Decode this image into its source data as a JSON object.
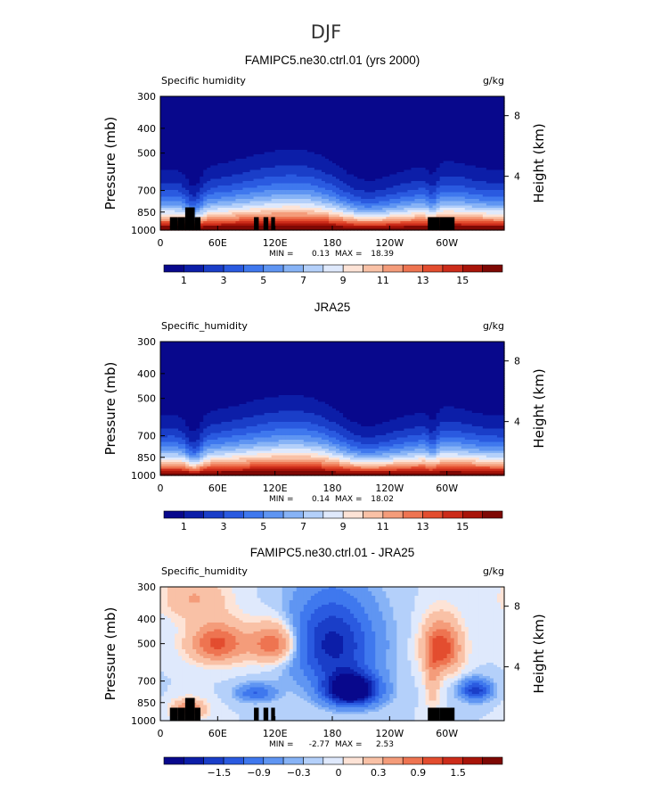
{
  "suptitle": "DJF",
  "colors": [
    "#08088c",
    "#0c1ea8",
    "#1a3ec8",
    "#2a5ae0",
    "#3f78ee",
    "#5f95f2",
    "#87b3f6",
    "#b4d0fa",
    "#dfe9fc",
    "#fde3d6",
    "#f9c1a6",
    "#f49c7a",
    "#ee7451",
    "#e34d2f",
    "#cc2c1a",
    "#a81409",
    "#7e0804"
  ],
  "chart_data": [
    {
      "type": "heatmap",
      "title": "FAMIPC5.ne30.ctrl.01 (yrs 2000)",
      "left_label": "Specific humidity",
      "units": "g/kg",
      "ylabel": "Pressure (mb)",
      "ylabel_right": "Height (km)",
      "yticks": [
        "300",
        "400",
        "500",
        "700",
        "850",
        "1000"
      ],
      "yticks_right": [
        "8",
        "4"
      ],
      "xticks": [
        "0",
        "60E",
        "120E",
        "180",
        "120W",
        "60W"
      ],
      "min_label": "MIN =",
      "min_value": "0.13",
      "max_label": "MAX =",
      "max_value": "18.39",
      "colorbar_labels": [
        "1",
        "3",
        "5",
        "7",
        "9",
        "11",
        "13",
        "15"
      ],
      "field": "shum",
      "topography": true
    },
    {
      "type": "heatmap",
      "title": "JRA25",
      "left_label": "Specific_humidity",
      "units": "g/kg",
      "ylabel": "Pressure (mb)",
      "ylabel_right": "Height (km)",
      "yticks": [
        "300",
        "400",
        "500",
        "700",
        "850",
        "1000"
      ],
      "yticks_right": [
        "8",
        "4"
      ],
      "xticks": [
        "0",
        "60E",
        "120E",
        "180",
        "120W",
        "60W"
      ],
      "min_label": "MIN =",
      "min_value": "0.14",
      "max_label": "MAX =",
      "max_value": "18.02",
      "colorbar_labels": [
        "1",
        "3",
        "5",
        "7",
        "9",
        "11",
        "13",
        "15"
      ],
      "field": "shum",
      "topography": false
    },
    {
      "type": "heatmap",
      "title": "FAMIPC5.ne30.ctrl.01 - JRA25",
      "left_label": "Specific_humidity",
      "units": "g/kg",
      "ylabel": "Pressure (mb)",
      "ylabel_right": "Height (km)",
      "yticks": [
        "300",
        "400",
        "500",
        "700",
        "850",
        "1000"
      ],
      "yticks_right": [
        "8",
        "4"
      ],
      "xticks": [
        "0",
        "60E",
        "120E",
        "180",
        "120W",
        "60W"
      ],
      "min_label": "MIN =",
      "min_value": "-2.77",
      "max_label": "MAX =",
      "max_value": "2.53",
      "colorbar_labels": [
        "−1.5",
        "−0.9",
        "−0.3",
        "0",
        "0.3",
        "0.9",
        "1.5"
      ],
      "field": "diff",
      "topography": true
    }
  ]
}
